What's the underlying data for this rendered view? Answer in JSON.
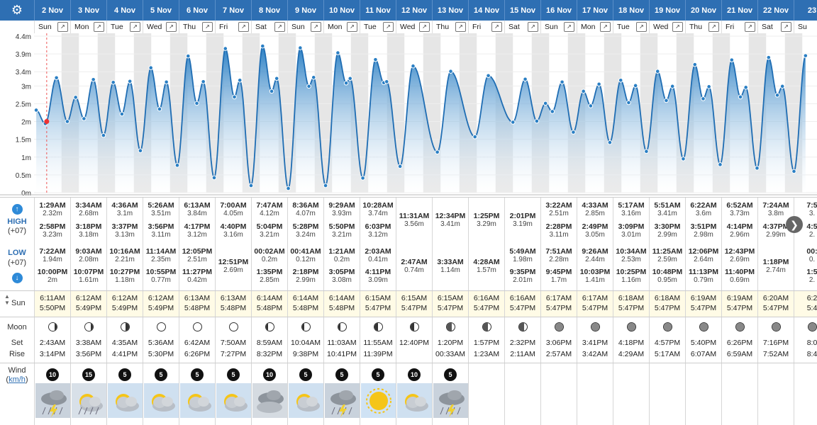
{
  "toolbar": {
    "settings_icon": "gear-icon"
  },
  "columns": [
    {
      "date": "2 Nov",
      "dow": "Sun",
      "high": [
        {
          "t": "1:29AM",
          "h": "2.32m"
        },
        {
          "t": "2:58PM",
          "h": "3.23m"
        }
      ],
      "low": [
        {
          "t": "7:22AM",
          "h": "1.94m"
        },
        {
          "t": "10:00PM",
          "h": "2m"
        }
      ],
      "sunrise": "6:11AM",
      "sunset": "5:50PM",
      "moon": "waxing-crescent",
      "moonset": "2:43AM",
      "moonrise": "3:14PM",
      "wind": "10",
      "wx": "storm"
    },
    {
      "date": "3 Nov",
      "dow": "Mon",
      "high": [
        {
          "t": "3:34AM",
          "h": "2.68m"
        },
        {
          "t": "3:18PM",
          "h": "3.18m"
        }
      ],
      "low": [
        {
          "t": "9:03AM",
          "h": "2.08m"
        },
        {
          "t": "10:07PM",
          "h": "1.61m"
        }
      ],
      "sunrise": "6:12AM",
      "sunset": "5:49PM",
      "moon": "waxing-crescent",
      "moonset": "3:38AM",
      "moonrise": "3:56PM",
      "wind": "15",
      "wx": "partly-rain"
    },
    {
      "date": "4 Nov",
      "dow": "Tue",
      "high": [
        {
          "t": "4:36AM",
          "h": "3.1m"
        },
        {
          "t": "3:37PM",
          "h": "3.13m"
        }
      ],
      "low": [
        {
          "t": "10:16AM",
          "h": "2.21m"
        },
        {
          "t": "10:27PM",
          "h": "1.18m"
        }
      ],
      "sunrise": "6:12AM",
      "sunset": "5:49PM",
      "moon": "first-quarter",
      "moonset": "4:35AM",
      "moonrise": "4:41PM",
      "wind": "5",
      "wx": "partly"
    },
    {
      "date": "5 Nov",
      "dow": "Wed",
      "high": [
        {
          "t": "5:26AM",
          "h": "3.51m"
        },
        {
          "t": "3:56PM",
          "h": "3.11m"
        }
      ],
      "low": [
        {
          "t": "11:14AM",
          "h": "2.35m"
        },
        {
          "t": "10:55PM",
          "h": "0.77m"
        }
      ],
      "sunrise": "6:12AM",
      "sunset": "5:49PM",
      "moon": "waxing-gibbous",
      "moonset": "5:36AM",
      "moonrise": "5:30PM",
      "wind": "5",
      "wx": "partly"
    },
    {
      "date": "6 Nov",
      "dow": "Thu",
      "high": [
        {
          "t": "6:13AM",
          "h": "3.84m"
        },
        {
          "t": "4:17PM",
          "h": "3.12m"
        }
      ],
      "low": [
        {
          "t": "12:05PM",
          "h": "2.51m"
        },
        {
          "t": "11:27PM",
          "h": "0.42m"
        }
      ],
      "sunrise": "6:13AM",
      "sunset": "5:48PM",
      "moon": "waxing-gibbous",
      "moonset": "6:42AM",
      "moonrise": "6:26PM",
      "wind": "5",
      "wx": "partly"
    },
    {
      "date": "7 Nov",
      "dow": "Fri",
      "high": [
        {
          "t": "7:00AM",
          "h": "4.05m"
        },
        {
          "t": "4:40PM",
          "h": "3.16m"
        }
      ],
      "low": [
        {
          "t": "12:51PM",
          "h": "2.69m"
        }
      ],
      "sunrise": "6:13AM",
      "sunset": "5:48PM",
      "moon": "full",
      "moonset": "7:50AM",
      "moonrise": "7:27PM",
      "wind": "5",
      "wx": "partly"
    },
    {
      "date": "8 Nov",
      "dow": "Sat",
      "high": [
        {
          "t": "7:47AM",
          "h": "4.12m"
        },
        {
          "t": "5:04PM",
          "h": "3.21m"
        }
      ],
      "low": [
        {
          "t": "00:02AM",
          "h": "0.2m"
        },
        {
          "t": "1:35PM",
          "h": "2.85m"
        }
      ],
      "sunrise": "6:14AM",
      "sunset": "5:48PM",
      "moon": "waning-gibbous",
      "moonset": "8:59AM",
      "moonrise": "8:32PM",
      "wind": "10",
      "wx": "cloudy"
    },
    {
      "date": "9 Nov",
      "dow": "Sun",
      "high": [
        {
          "t": "8:36AM",
          "h": "4.07m"
        },
        {
          "t": "5:28PM",
          "h": "3.24m"
        }
      ],
      "low": [
        {
          "t": "00:41AM",
          "h": "0.12m"
        },
        {
          "t": "2:18PM",
          "h": "2.99m"
        }
      ],
      "sunrise": "6:14AM",
      "sunset": "5:48PM",
      "moon": "waning-gibbous",
      "moonset": "10:04AM",
      "moonrise": "9:38PM",
      "wind": "5",
      "wx": "partly"
    },
    {
      "date": "10 Nov",
      "dow": "Mon",
      "high": [
        {
          "t": "9:29AM",
          "h": "3.93m"
        },
        {
          "t": "5:50PM",
          "h": "3.21m"
        }
      ],
      "low": [
        {
          "t": "1:21AM",
          "h": "0.2m"
        },
        {
          "t": "3:05PM",
          "h": "3.08m"
        }
      ],
      "sunrise": "6:14AM",
      "sunset": "5:48PM",
      "moon": "waning-gibbous",
      "moonset": "11:03AM",
      "moonrise": "10:41PM",
      "wind": "5",
      "wx": "storm"
    },
    {
      "date": "11 Nov",
      "dow": "Tue",
      "high": [
        {
          "t": "10:28AM",
          "h": "3.74m"
        },
        {
          "t": "6:03PM",
          "h": "3.12m"
        }
      ],
      "low": [
        {
          "t": "2:03AM",
          "h": "0.41m"
        },
        {
          "t": "4:11PM",
          "h": "3.09m"
        }
      ],
      "sunrise": "6:15AM",
      "sunset": "5:47PM",
      "moon": "last-quarter",
      "moonset": "11:55AM",
      "moonrise": "11:39PM",
      "wind": "5",
      "wx": "sunny"
    },
    {
      "date": "12 Nov",
      "dow": "Wed",
      "high": [
        {
          "t": "11:31AM",
          "h": "3.56m"
        }
      ],
      "low": [
        {
          "t": "2:47AM",
          "h": "0.74m"
        }
      ],
      "sunrise": "6:15AM",
      "sunset": "5:47PM",
      "moon": "last-quarter",
      "moonset": "12:40PM",
      "moonrise": "",
      "wind": "10",
      "wx": "partly"
    },
    {
      "date": "13 Nov",
      "dow": "Thu",
      "high": [
        {
          "t": "12:34PM",
          "h": "3.41m"
        }
      ],
      "low": [
        {
          "t": "3:33AM",
          "h": "1.14m"
        }
      ],
      "sunrise": "6:15AM",
      "sunset": "5:47PM",
      "moon": "waning-crescent",
      "moonset": "1:20PM",
      "moonrise": "00:33AM",
      "wind": "5",
      "wx": "storm"
    },
    {
      "date": "14 Nov",
      "dow": "Fri",
      "high": [
        {
          "t": "1:25PM",
          "h": "3.29m"
        }
      ],
      "low": [
        {
          "t": "4:28AM",
          "h": "1.57m"
        }
      ],
      "sunrise": "6:16AM",
      "sunset": "5:47PM",
      "moon": "waning-crescent",
      "moonset": "1:57PM",
      "moonrise": "1:23AM",
      "wind": "",
      "wx": ""
    },
    {
      "date": "15 Nov",
      "dow": "Sat",
      "high": [
        {
          "t": "2:01PM",
          "h": "3.19m"
        }
      ],
      "low": [
        {
          "t": "5:49AM",
          "h": "1.98m"
        },
        {
          "t": "9:35PM",
          "h": "2.01m"
        }
      ],
      "sunrise": "6:16AM",
      "sunset": "5:47PM",
      "moon": "waning-crescent",
      "moonset": "2:32PM",
      "moonrise": "2:11AM",
      "wind": "",
      "wx": ""
    },
    {
      "date": "16 Nov",
      "dow": "Sun",
      "high": [
        {
          "t": "3:22AM",
          "h": "2.51m"
        },
        {
          "t": "2:28PM",
          "h": "3.11m"
        }
      ],
      "low": [
        {
          "t": "7:51AM",
          "h": "2.28m"
        },
        {
          "t": "9:45PM",
          "h": "1.7m"
        }
      ],
      "sunrise": "6:17AM",
      "sunset": "5:47PM",
      "moon": "new",
      "moonset": "3:06PM",
      "moonrise": "2:57AM",
      "wind": "",
      "wx": ""
    },
    {
      "date": "17 Nov",
      "dow": "Mon",
      "high": [
        {
          "t": "4:33AM",
          "h": "2.85m"
        },
        {
          "t": "2:49PM",
          "h": "3.05m"
        }
      ],
      "low": [
        {
          "t": "9:26AM",
          "h": "2.44m"
        },
        {
          "t": "10:03PM",
          "h": "1.41m"
        }
      ],
      "sunrise": "6:17AM",
      "sunset": "5:47PM",
      "moon": "new",
      "moonset": "3:41PM",
      "moonrise": "3:42AM",
      "wind": "",
      "wx": ""
    },
    {
      "date": "18 Nov",
      "dow": "Tue",
      "high": [
        {
          "t": "5:17AM",
          "h": "3.16m"
        },
        {
          "t": "3:09PM",
          "h": "3.01m"
        }
      ],
      "low": [
        {
          "t": "10:34AM",
          "h": "2.53m"
        },
        {
          "t": "10:25PM",
          "h": "1.16m"
        }
      ],
      "sunrise": "6:18AM",
      "sunset": "5:47PM",
      "moon": "new",
      "moonset": "4:18PM",
      "moonrise": "4:29AM",
      "wind": "",
      "wx": ""
    },
    {
      "date": "19 Nov",
      "dow": "Wed",
      "high": [
        {
          "t": "5:51AM",
          "h": "3.41m"
        },
        {
          "t": "3:30PM",
          "h": "2.99m"
        }
      ],
      "low": [
        {
          "t": "11:25AM",
          "h": "2.59m"
        },
        {
          "t": "10:48PM",
          "h": "0.95m"
        }
      ],
      "sunrise": "6:18AM",
      "sunset": "5:47PM",
      "moon": "new",
      "moonset": "4:57PM",
      "moonrise": "5:17AM",
      "wind": "",
      "wx": ""
    },
    {
      "date": "20 Nov",
      "dow": "Thu",
      "high": [
        {
          "t": "6:22AM",
          "h": "3.6m"
        },
        {
          "t": "3:51PM",
          "h": "2.98m"
        }
      ],
      "low": [
        {
          "t": "12:06PM",
          "h": "2.64m"
        },
        {
          "t": "11:13PM",
          "h": "0.79m"
        }
      ],
      "sunrise": "6:19AM",
      "sunset": "5:47PM",
      "moon": "new",
      "moonset": "5:40PM",
      "moonrise": "6:07AM",
      "wind": "",
      "wx": ""
    },
    {
      "date": "21 Nov",
      "dow": "Fri",
      "high": [
        {
          "t": "6:52AM",
          "h": "3.73m"
        },
        {
          "t": "4:14PM",
          "h": "2.96m"
        }
      ],
      "low": [
        {
          "t": "12:43PM",
          "h": "2.69m"
        },
        {
          "t": "11:40PM",
          "h": "0.69m"
        }
      ],
      "sunrise": "6:19AM",
      "sunset": "5:47PM",
      "moon": "new",
      "moonset": "6:26PM",
      "moonrise": "6:59AM",
      "wind": "",
      "wx": ""
    },
    {
      "date": "22 Nov",
      "dow": "Sat",
      "high": [
        {
          "t": "7:24AM",
          "h": "3.8m"
        },
        {
          "t": "4:37PM",
          "h": "2.99m"
        }
      ],
      "low": [
        {
          "t": "1:18PM",
          "h": "2.74m"
        }
      ],
      "sunrise": "6:20AM",
      "sunset": "5:47PM",
      "moon": "new",
      "moonset": "7:16PM",
      "moonrise": "7:52AM",
      "wind": "",
      "wx": ""
    },
    {
      "date": "23",
      "dow": "Su",
      "high": [
        {
          "t": "7:5",
          "h": "3."
        },
        {
          "t": "4:5",
          "h": "2."
        }
      ],
      "low": [
        {
          "t": "00:",
          "h": "0."
        },
        {
          "t": "1:5",
          "h": "2."
        }
      ],
      "sunrise": "6:2",
      "sunset": "5:4",
      "moon": "new",
      "moonset": "8:0",
      "moonrise": "8:4",
      "wind": "",
      "wx": ""
    }
  ],
  "labels": {
    "high": "HIGH",
    "low": "LOW",
    "tz": "(+07)",
    "sun": "Sun",
    "moon": "Moon",
    "set": "Set",
    "rise": "Rise",
    "wind": "Wind",
    "wind_unit": "km/h",
    "wind_unit_open": "(",
    "wind_unit_close": ")"
  },
  "chart_data": {
    "type": "area",
    "ylabel": "",
    "yticks": [
      "0m",
      "0.5m",
      "1m",
      "1.5m",
      "2m",
      "2.5m",
      "3m",
      "3.4m",
      "3.9m",
      "4.4m"
    ],
    "ylim": [
      0,
      4.4
    ],
    "xlim_days": [
      0,
      21.3
    ],
    "unit": "m",
    "series": [
      {
        "values": [
          [
            0.06,
            2.32
          ],
          [
            0.31,
            1.94
          ],
          [
            0.62,
            3.23
          ],
          [
            0.92,
            2.0
          ],
          [
            1.15,
            2.68
          ],
          [
            1.38,
            2.08
          ],
          [
            1.64,
            3.18
          ],
          [
            1.92,
            1.61
          ],
          [
            2.19,
            3.1
          ],
          [
            2.43,
            2.21
          ],
          [
            2.65,
            3.13
          ],
          [
            2.94,
            1.18
          ],
          [
            3.23,
            3.51
          ],
          [
            3.47,
            2.35
          ],
          [
            3.66,
            3.11
          ],
          [
            3.96,
            0.77
          ],
          [
            4.26,
            3.84
          ],
          [
            4.5,
            2.51
          ],
          [
            4.68,
            3.12
          ],
          [
            4.98,
            0.42
          ],
          [
            5.29,
            4.05
          ],
          [
            5.54,
            2.69
          ],
          [
            5.69,
            3.16
          ],
          [
            6.0,
            0.2
          ],
          [
            6.32,
            4.12
          ],
          [
            6.57,
            2.85
          ],
          [
            6.71,
            3.21
          ],
          [
            7.03,
            0.12
          ],
          [
            7.36,
            4.07
          ],
          [
            7.6,
            2.99
          ],
          [
            7.73,
            3.24
          ],
          [
            8.06,
            0.2
          ],
          [
            8.4,
            3.93
          ],
          [
            8.63,
            3.08
          ],
          [
            8.74,
            3.21
          ],
          [
            9.09,
            0.41
          ],
          [
            9.44,
            3.74
          ],
          [
            9.67,
            3.09
          ],
          [
            9.75,
            3.12
          ],
          [
            10.12,
            0.74
          ],
          [
            10.48,
            3.56
          ],
          [
            11.15,
            1.14
          ],
          [
            11.52,
            3.41
          ],
          [
            12.19,
            1.57
          ],
          [
            12.56,
            3.29
          ],
          [
            13.24,
            1.98
          ],
          [
            13.58,
            3.19
          ],
          [
            13.9,
            2.01
          ],
          [
            14.14,
            2.51
          ],
          [
            14.33,
            2.28
          ],
          [
            14.6,
            3.11
          ],
          [
            14.91,
            1.7
          ],
          [
            15.19,
            2.85
          ],
          [
            15.39,
            2.44
          ],
          [
            15.62,
            3.05
          ],
          [
            15.92,
            1.41
          ],
          [
            16.22,
            3.16
          ],
          [
            16.44,
            2.53
          ],
          [
            16.63,
            3.01
          ],
          [
            16.93,
            1.16
          ],
          [
            17.24,
            3.41
          ],
          [
            17.48,
            2.59
          ],
          [
            17.65,
            2.99
          ],
          [
            17.95,
            0.95
          ],
          [
            18.27,
            3.6
          ],
          [
            18.5,
            2.64
          ],
          [
            18.66,
            2.98
          ],
          [
            18.97,
            0.79
          ],
          [
            19.29,
            3.73
          ],
          [
            19.53,
            2.69
          ],
          [
            19.68,
            2.96
          ],
          [
            19.99,
            0.69
          ],
          [
            20.31,
            3.8
          ],
          [
            20.55,
            2.74
          ],
          [
            20.69,
            2.99
          ],
          [
            21.01,
            0.6
          ],
          [
            21.33,
            3.85
          ]
        ]
      }
    ],
    "now_day": 0.35,
    "now_value": 2.0
  }
}
